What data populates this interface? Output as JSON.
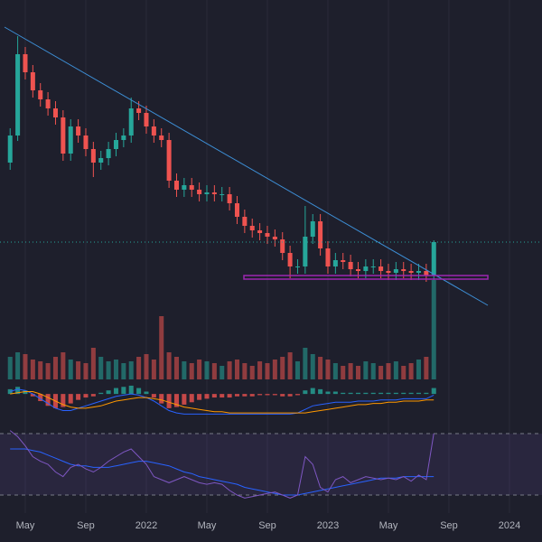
{
  "chart_data": {
    "type": "candlestick",
    "x": [
      3,
      3.5,
      4,
      4.5,
      5,
      5.5,
      6,
      6.5,
      7,
      7.5,
      8,
      8.5,
      9,
      9.5,
      10,
      10.5,
      11,
      11.5,
      12,
      12.5,
      13,
      13.5,
      14,
      14.5,
      15,
      15.5,
      16,
      16.5,
      17,
      17.5,
      18,
      18.5,
      19,
      19.5,
      20,
      20.5,
      21,
      21.5,
      22,
      22.5,
      23,
      23.5,
      24,
      24.5,
      25,
      25.5,
      26,
      26.5,
      27,
      27.5,
      28,
      28.5,
      29,
      29.5,
      30,
      30.5,
      31
    ],
    "open": [
      60,
      67.5,
      90,
      85,
      80,
      77.5,
      75,
      72.5,
      62.5,
      70,
      67.5,
      63.75,
      60,
      61.25,
      63.75,
      66.25,
      67.5,
      75,
      73.75,
      70,
      67.5,
      66.25,
      55,
      52.5,
      53.75,
      52.5,
      51.25,
      51.75,
      51.25,
      51.25,
      48.75,
      45,
      42.5,
      41.25,
      40.5,
      39.5,
      38.75,
      35,
      31.25,
      31.25,
      39.5,
      43.75,
      36.25,
      31.25,
      33,
      32.5,
      30.5,
      30,
      31.25,
      31.25,
      30,
      29.5,
      30.5,
      30,
      29.5,
      30,
      28.75
    ],
    "high": [
      69.5,
      95,
      92,
      87,
      82,
      79.5,
      77,
      74.5,
      72,
      72,
      69.5,
      65.75,
      63.25,
      65.75,
      68.25,
      69.5,
      78,
      77,
      75.75,
      72,
      69.5,
      68.25,
      57,
      55.75,
      55.75,
      54.5,
      53.75,
      53.75,
      53.25,
      53.25,
      50.75,
      47,
      44.5,
      43.25,
      42.5,
      41.5,
      40.75,
      37,
      33.25,
      48,
      45.75,
      45.75,
      38.25,
      35,
      35,
      34.5,
      32.5,
      33.25,
      33.25,
      33.25,
      32,
      32.5,
      32.5,
      32,
      32,
      32,
      38.5
    ],
    "low": [
      58,
      66,
      83,
      78,
      75.5,
      73,
      70.5,
      60.5,
      60.5,
      65.5,
      61.75,
      56,
      58,
      59.25,
      61.75,
      64.25,
      65.5,
      71.75,
      68,
      65.5,
      64.25,
      53,
      50.5,
      50.5,
      50.5,
      49.25,
      49.25,
      49.25,
      49.25,
      46.75,
      43,
      40.5,
      39.25,
      38.5,
      37.5,
      36.75,
      33,
      28,
      29.25,
      29.25,
      37.5,
      34.25,
      29.25,
      29.25,
      30.5,
      28.5,
      28,
      28,
      29.25,
      28,
      27.5,
      27.5,
      28,
      27.5,
      27.5,
      27,
      27.5
    ],
    "close": [
      67.5,
      90,
      85,
      80,
      77.5,
      75,
      72.5,
      62.5,
      70,
      67.5,
      63.75,
      60,
      61.25,
      63.75,
      66.25,
      67.5,
      75,
      73.75,
      70,
      67.5,
      66.25,
      55,
      52.5,
      53.75,
      52.5,
      51.25,
      51.75,
      51.25,
      51.25,
      48.75,
      45,
      42.5,
      41.25,
      40.5,
      39.5,
      38.75,
      35,
      31.25,
      31.25,
      39.5,
      43.75,
      36.25,
      31.25,
      33,
      32.5,
      30.5,
      30,
      31.25,
      31.25,
      30,
      29.5,
      30.5,
      30,
      29.5,
      30,
      28.75,
      38
    ],
    "volume": [
      25,
      30,
      28,
      22,
      20,
      18,
      25,
      30,
      22,
      20,
      18,
      35,
      25,
      20,
      22,
      18,
      20,
      25,
      28,
      22,
      70,
      30,
      25,
      20,
      18,
      22,
      20,
      18,
      15,
      20,
      22,
      18,
      15,
      20,
      18,
      22,
      25,
      30,
      20,
      35,
      28,
      25,
      22,
      18,
      15,
      18,
      15,
      20,
      18,
      15,
      18,
      20,
      15,
      18,
      22,
      25,
      110
    ],
    "macd": {
      "histogram": [
        4,
        6,
        3,
        -2,
        -6,
        -10,
        -12,
        -11,
        -8,
        -5,
        -3,
        -2,
        1,
        3,
        5,
        6,
        7,
        5,
        2,
        -3,
        -8,
        -12,
        -11,
        -9,
        -7,
        -5,
        -4,
        -3,
        -3,
        -3,
        -2,
        -2,
        -2,
        -1,
        -1,
        -1,
        -2,
        -2,
        -1,
        3,
        5,
        4,
        2,
        2,
        1,
        1,
        1,
        1,
        1,
        1,
        1,
        1,
        1,
        1,
        1,
        1,
        5
      ],
      "macd": [
        2,
        4,
        3,
        0,
        -4,
        -8,
        -12,
        -14,
        -14,
        -12,
        -10,
        -8,
        -6,
        -4,
        -2,
        -1,
        0,
        -1,
        -3,
        -6,
        -10,
        -14,
        -16,
        -17,
        -17,
        -17,
        -17,
        -17,
        -17,
        -17,
        -17,
        -17,
        -17,
        -17,
        -17,
        -17,
        -17,
        -17,
        -16,
        -13,
        -10,
        -9,
        -8,
        -7,
        -7,
        -7,
        -6,
        -6,
        -6,
        -5,
        -5,
        -5,
        -4,
        -4,
        -4,
        -4,
        -1
      ],
      "signal": [
        0,
        1,
        2,
        2,
        0,
        -3,
        -6,
        -9,
        -11,
        -12,
        -12,
        -11,
        -10,
        -8,
        -6,
        -5,
        -4,
        -3,
        -3,
        -4,
        -5,
        -7,
        -9,
        -11,
        -12,
        -13,
        -14,
        -15,
        -15,
        -16,
        -16,
        -16,
        -16,
        -16,
        -16,
        -16,
        -16,
        -16,
        -16,
        -16,
        -15,
        -14,
        -13,
        -12,
        -11,
        -10,
        -9,
        -9,
        -8,
        -8,
        -7,
        -7,
        -6,
        -6,
        -6,
        -5,
        -5
      ],
      "ylim": [
        -22,
        10
      ]
    },
    "rsi": {
      "values": [
        72,
        68,
        62,
        55,
        52,
        50,
        45,
        42,
        48,
        50,
        47,
        45,
        48,
        52,
        55,
        58,
        60,
        55,
        50,
        42,
        40,
        38,
        40,
        42,
        40,
        38,
        37,
        38,
        37,
        33,
        30,
        28,
        29,
        30,
        31,
        32,
        30,
        28,
        30,
        55,
        50,
        35,
        32,
        40,
        42,
        38,
        40,
        42,
        41,
        40,
        41,
        40,
        42,
        39,
        43,
        40,
        70
      ],
      "ma": [
        60,
        60,
        60,
        59,
        58,
        56,
        54,
        52,
        50,
        49,
        49,
        48,
        48,
        48,
        49,
        50,
        51,
        52,
        52,
        51,
        50,
        49,
        47,
        45,
        44,
        42,
        41,
        40,
        39,
        38,
        37,
        35,
        34,
        33,
        32,
        31,
        30,
        30,
        30,
        31,
        32,
        33,
        34,
        35,
        36,
        37,
        38,
        39,
        40,
        41,
        41,
        41,
        42,
        42,
        42,
        42,
        42
      ],
      "ylim": [
        20,
        80
      ],
      "bands": [
        30,
        70
      ],
      "color": "#7e57c2",
      "ma_color": "#2962ff"
    },
    "trendline": {
      "x": [
        2.63,
        34.57
      ],
      "y": [
        97.5,
        20.5
      ],
      "color": "#3d8fd6"
    },
    "support": {
      "x": [
        18.45,
        34.57
      ],
      "y": 28.25,
      "color": "#9c27b0"
    },
    "xlim": [
      2.33,
      38.15
    ],
    "xticks": [
      {
        "value": 4,
        "label": "May"
      },
      {
        "value": 8,
        "label": "Sep"
      },
      {
        "value": 12,
        "label": "2022"
      },
      {
        "value": 16,
        "label": "May"
      },
      {
        "value": 20,
        "label": "Sep"
      },
      {
        "value": 24,
        "label": "2023"
      },
      {
        "value": 28,
        "label": "May"
      },
      {
        "value": 32,
        "label": "Sep"
      },
      {
        "value": 36,
        "label": "2024"
      }
    ],
    "ylim": [
      0,
      100
    ],
    "volume_ylim": [
      0,
      120
    ],
    "up_color": "#26a69a",
    "down_color": "#ef5350",
    "grid": true
  }
}
